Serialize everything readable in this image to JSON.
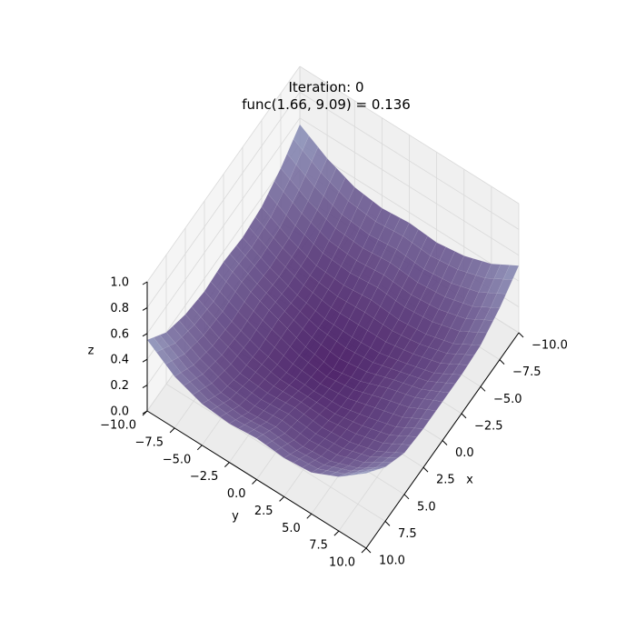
{
  "chart_data": {
    "type": "surface3d",
    "title": [
      "Iteration: 0",
      "func(1.66, 9.09) = 0.136"
    ],
    "xlabel": "x",
    "ylabel": "y",
    "zlabel": "z",
    "xlim": [
      -10,
      10
    ],
    "ylim": [
      -10,
      10
    ],
    "zlim": [
      0,
      1
    ],
    "x_ticks": [
      "−10.0",
      "−7.5",
      "−5.0",
      "−2.5",
      "0.0",
      "2.5",
      "5.0",
      "7.5",
      "10.0"
    ],
    "y_ticks": [
      "−10.0",
      "−7.5",
      "−5.0",
      "−2.5",
      "0.0",
      "2.5",
      "5.0",
      "7.5",
      "10.0"
    ],
    "z_ticks": [
      "0.0",
      "0.2",
      "0.4",
      "0.6",
      "0.8",
      "1.0"
    ],
    "colormap": "viridis-like (dark purple low → grey-blue high)",
    "surface": {
      "grid": [
        -10,
        -7.5,
        -5,
        -2.5,
        0,
        2.5,
        5,
        7.5,
        10
      ],
      "z": [
        [
          0.55,
          0.42,
          0.33,
          0.3,
          0.32,
          0.3,
          0.33,
          0.4,
          0.52
        ],
        [
          0.42,
          0.3,
          0.22,
          0.2,
          0.22,
          0.2,
          0.22,
          0.28,
          0.4
        ],
        [
          0.33,
          0.22,
          0.14,
          0.12,
          0.14,
          0.12,
          0.14,
          0.2,
          0.32
        ],
        [
          0.3,
          0.2,
          0.12,
          0.07,
          0.06,
          0.07,
          0.12,
          0.18,
          0.3
        ],
        [
          0.32,
          0.22,
          0.14,
          0.06,
          0.02,
          0.06,
          0.14,
          0.2,
          0.3
        ],
        [
          0.3,
          0.2,
          0.12,
          0.07,
          0.06,
          0.07,
          0.12,
          0.18,
          0.3
        ],
        [
          0.33,
          0.22,
          0.14,
          0.12,
          0.14,
          0.12,
          0.14,
          0.2,
          0.32
        ],
        [
          0.4,
          0.28,
          0.2,
          0.18,
          0.2,
          0.18,
          0.2,
          0.28,
          0.42
        ],
        [
          0.55,
          0.4,
          0.32,
          0.3,
          0.32,
          0.3,
          0.32,
          0.42,
          0.58
        ]
      ]
    },
    "grid": true,
    "colors": {
      "low": "#3f0f5c",
      "high": "#9aa8c8",
      "pane": "#f2f2f2",
      "gridline": "#d9d9d9"
    }
  }
}
